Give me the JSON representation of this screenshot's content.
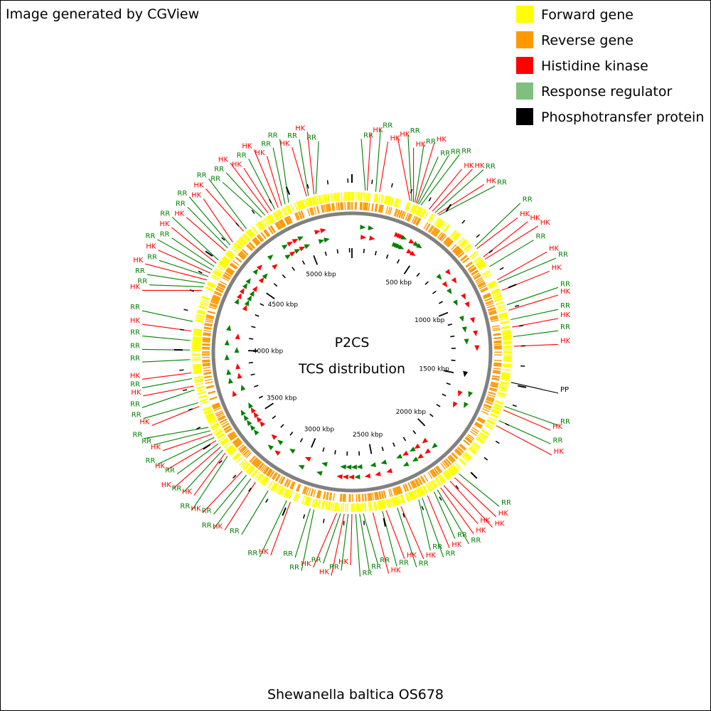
{
  "header": {
    "generator_text": "Image generated by CGView"
  },
  "legend": [
    {
      "label": "Forward gene",
      "color": "#ffff00"
    },
    {
      "label": "Reverse gene",
      "color": "#ff9900"
    },
    {
      "label": "Histidine kinase",
      "color": "#ff0000"
    },
    {
      "label": "Response regulator",
      "color": "#7fbf7f"
    },
    {
      "label": "Phosphotransfer protein",
      "color": "#000000"
    }
  ],
  "center": {
    "line1": "P2CS",
    "line2": "TCS distribution"
  },
  "genome": {
    "organism": "Shewanella baltica OS678",
    "size_kbp": 5320,
    "scale_labels": [
      "500 kbp",
      "1000 kbp",
      "1500 kbp",
      "2000 kbp",
      "2500 kbp",
      "3000 kbp",
      "3500 kbp",
      "4000 kbp",
      "4500 kbp",
      "5000 kbp"
    ]
  },
  "colors": {
    "hk": "#ff0000",
    "rr": "#008000",
    "rr_legend": "#7fbf7f",
    "pp": "#000000",
    "forward": "#ffff00",
    "reverse": "#ff9900",
    "backbone": "#808080"
  },
  "features": [
    {
      "type": "RR",
      "pos_kbp": 70
    },
    {
      "type": "HK",
      "pos_kbp": 80
    },
    {
      "type": "RR",
      "pos_kbp": 125
    },
    {
      "type": "HK",
      "pos_kbp": 145
    },
    {
      "type": "HK",
      "pos_kbp": 310
    },
    {
      "type": "RR",
      "pos_kbp": 320
    },
    {
      "type": "HK",
      "pos_kbp": 330
    },
    {
      "type": "RR",
      "pos_kbp": 338
    },
    {
      "type": "HK",
      "pos_kbp": 345
    },
    {
      "type": "RR",
      "pos_kbp": 352
    },
    {
      "type": "RR",
      "pos_kbp": 360
    },
    {
      "type": "RR",
      "pos_kbp": 372
    },
    {
      "type": "HK",
      "pos_kbp": 420
    },
    {
      "type": "HK",
      "pos_kbp": 440
    },
    {
      "type": "RR",
      "pos_kbp": 455
    },
    {
      "type": "HK",
      "pos_kbp": 470
    },
    {
      "type": "RR",
      "pos_kbp": 480
    },
    {
      "type": "RR",
      "pos_kbp": 730
    },
    {
      "type": "HK",
      "pos_kbp": 745
    },
    {
      "type": "HK",
      "pos_kbp": 800
    },
    {
      "type": "HK",
      "pos_kbp": 815
    },
    {
      "type": "RR",
      "pos_kbp": 860
    },
    {
      "type": "HK",
      "pos_kbp": 940
    },
    {
      "type": "RR",
      "pos_kbp": 955
    },
    {
      "type": "HK",
      "pos_kbp": 1000
    },
    {
      "type": "RR",
      "pos_kbp": 1080
    },
    {
      "type": "HK",
      "pos_kbp": 1110
    },
    {
      "type": "RR",
      "pos_kbp": 1160
    },
    {
      "type": "HK",
      "pos_kbp": 1200
    },
    {
      "type": "RR",
      "pos_kbp": 1250
    },
    {
      "type": "HK",
      "pos_kbp": 1300
    },
    {
      "type": "PP",
      "pos_kbp": 1490
    },
    {
      "type": "RR",
      "pos_kbp": 1620
    },
    {
      "type": "HK",
      "pos_kbp": 1640
    },
    {
      "type": "RR",
      "pos_kbp": 1700
    },
    {
      "type": "HK",
      "pos_kbp": 1730
    },
    {
      "type": "RR",
      "pos_kbp": 2050
    },
    {
      "type": "HK",
      "pos_kbp": 2080
    },
    {
      "type": "HK",
      "pos_kbp": 2110
    },
    {
      "type": "HK",
      "pos_kbp": 2150
    },
    {
      "type": "HK",
      "pos_kbp": 2170
    },
    {
      "type": "RR",
      "pos_kbp": 2190
    },
    {
      "type": "RR",
      "pos_kbp": 2210
    },
    {
      "type": "HK",
      "pos_kbp": 2250
    },
    {
      "type": "RR",
      "pos_kbp": 2280
    },
    {
      "type": "RR",
      "pos_kbp": 2300
    },
    {
      "type": "HK",
      "pos_kbp": 2400
    },
    {
      "type": "RR",
      "pos_kbp": 2420
    },
    {
      "type": "HK",
      "pos_kbp": 2480
    },
    {
      "type": "RR",
      "pos_kbp": 2500
    },
    {
      "type": "HK",
      "pos_kbp": 2550
    },
    {
      "type": "RR",
      "pos_kbp": 2600
    },
    {
      "type": "RR",
      "pos_kbp": 2620
    },
    {
      "type": "RR",
      "pos_kbp": 2640
    },
    {
      "type": "HK",
      "pos_kbp": 2660
    },
    {
      "type": "RR",
      "pos_kbp": 2680
    },
    {
      "type": "HK",
      "pos_kbp": 2700
    },
    {
      "type": "RR",
      "pos_kbp": 2720
    },
    {
      "type": "HK",
      "pos_kbp": 2740
    },
    {
      "type": "RR",
      "pos_kbp": 2860
    },
    {
      "type": "RR",
      "pos_kbp": 2880
    },
    {
      "type": "HK",
      "pos_kbp": 2990
    },
    {
      "type": "RR",
      "pos_kbp": 3010
    },
    {
      "type": "RR",
      "pos_kbp": 3120
    },
    {
      "type": "HK",
      "pos_kbp": 3200
    },
    {
      "type": "RR",
      "pos_kbp": 3230
    },
    {
      "type": "RR",
      "pos_kbp": 3260
    },
    {
      "type": "HK",
      "pos_kbp": 3290
    },
    {
      "type": "RR",
      "pos_kbp": 3400
    },
    {
      "type": "HK",
      "pos_kbp": 3420
    },
    {
      "type": "RR",
      "pos_kbp": 3440
    },
    {
      "type": "HK",
      "pos_kbp": 3460
    },
    {
      "type": "RR",
      "pos_kbp": 3480
    },
    {
      "type": "HK",
      "pos_kbp": 3500
    },
    {
      "type": "RR",
      "pos_kbp": 3520
    },
    {
      "type": "HK",
      "pos_kbp": 3540
    },
    {
      "type": "RR",
      "pos_kbp": 3560
    },
    {
      "type": "RR",
      "pos_kbp": 3580
    },
    {
      "type": "HK",
      "pos_kbp": 3700
    },
    {
      "type": "RR",
      "pos_kbp": 3720
    },
    {
      "type": "RR",
      "pos_kbp": 3790
    },
    {
      "type": "HK",
      "pos_kbp": 3810
    },
    {
      "type": "RR",
      "pos_kbp": 3850
    },
    {
      "type": "HK",
      "pos_kbp": 3880
    },
    {
      "type": "RR",
      "pos_kbp": 3950
    },
    {
      "type": "RR",
      "pos_kbp": 4000
    },
    {
      "type": "RR",
      "pos_kbp": 4050
    },
    {
      "type": "HK",
      "pos_kbp": 4100
    },
    {
      "type": "RR",
      "pos_kbp": 4150
    },
    {
      "type": "HK",
      "pos_kbp": 4320
    },
    {
      "type": "RR",
      "pos_kbp": 4340
    },
    {
      "type": "RR",
      "pos_kbp": 4360
    },
    {
      "type": "HK",
      "pos_kbp": 4380
    },
    {
      "type": "RR",
      "pos_kbp": 4400
    },
    {
      "type": "HK",
      "pos_kbp": 4420
    },
    {
      "type": "RR",
      "pos_kbp": 4440
    },
    {
      "type": "RR",
      "pos_kbp": 4460
    },
    {
      "type": "HK",
      "pos_kbp": 4480
    },
    {
      "type": "RR",
      "pos_kbp": 4500
    },
    {
      "type": "HK",
      "pos_kbp": 4560
    },
    {
      "type": "RR",
      "pos_kbp": 4580
    },
    {
      "type": "RR",
      "pos_kbp": 4600
    },
    {
      "type": "HK",
      "pos_kbp": 4620
    },
    {
      "type": "HK",
      "pos_kbp": 4700
    },
    {
      "type": "RR",
      "pos_kbp": 4720
    },
    {
      "type": "RR",
      "pos_kbp": 4820
    },
    {
      "type": "RR",
      "pos_kbp": 4840
    },
    {
      "type": "HK",
      "pos_kbp": 4860
    },
    {
      "type": "HK",
      "pos_kbp": 4880
    },
    {
      "type": "RR",
      "pos_kbp": 4900
    },
    {
      "type": "HK",
      "pos_kbp": 4920
    },
    {
      "type": "HK",
      "pos_kbp": 4940
    },
    {
      "type": "RR",
      "pos_kbp": 4960
    },
    {
      "type": "RR",
      "pos_kbp": 4980
    },
    {
      "type": "HK",
      "pos_kbp": 5080
    },
    {
      "type": "RR",
      "pos_kbp": 5090
    },
    {
      "type": "HK",
      "pos_kbp": 5120
    },
    {
      "type": "RR",
      "pos_kbp": 5130
    }
  ]
}
